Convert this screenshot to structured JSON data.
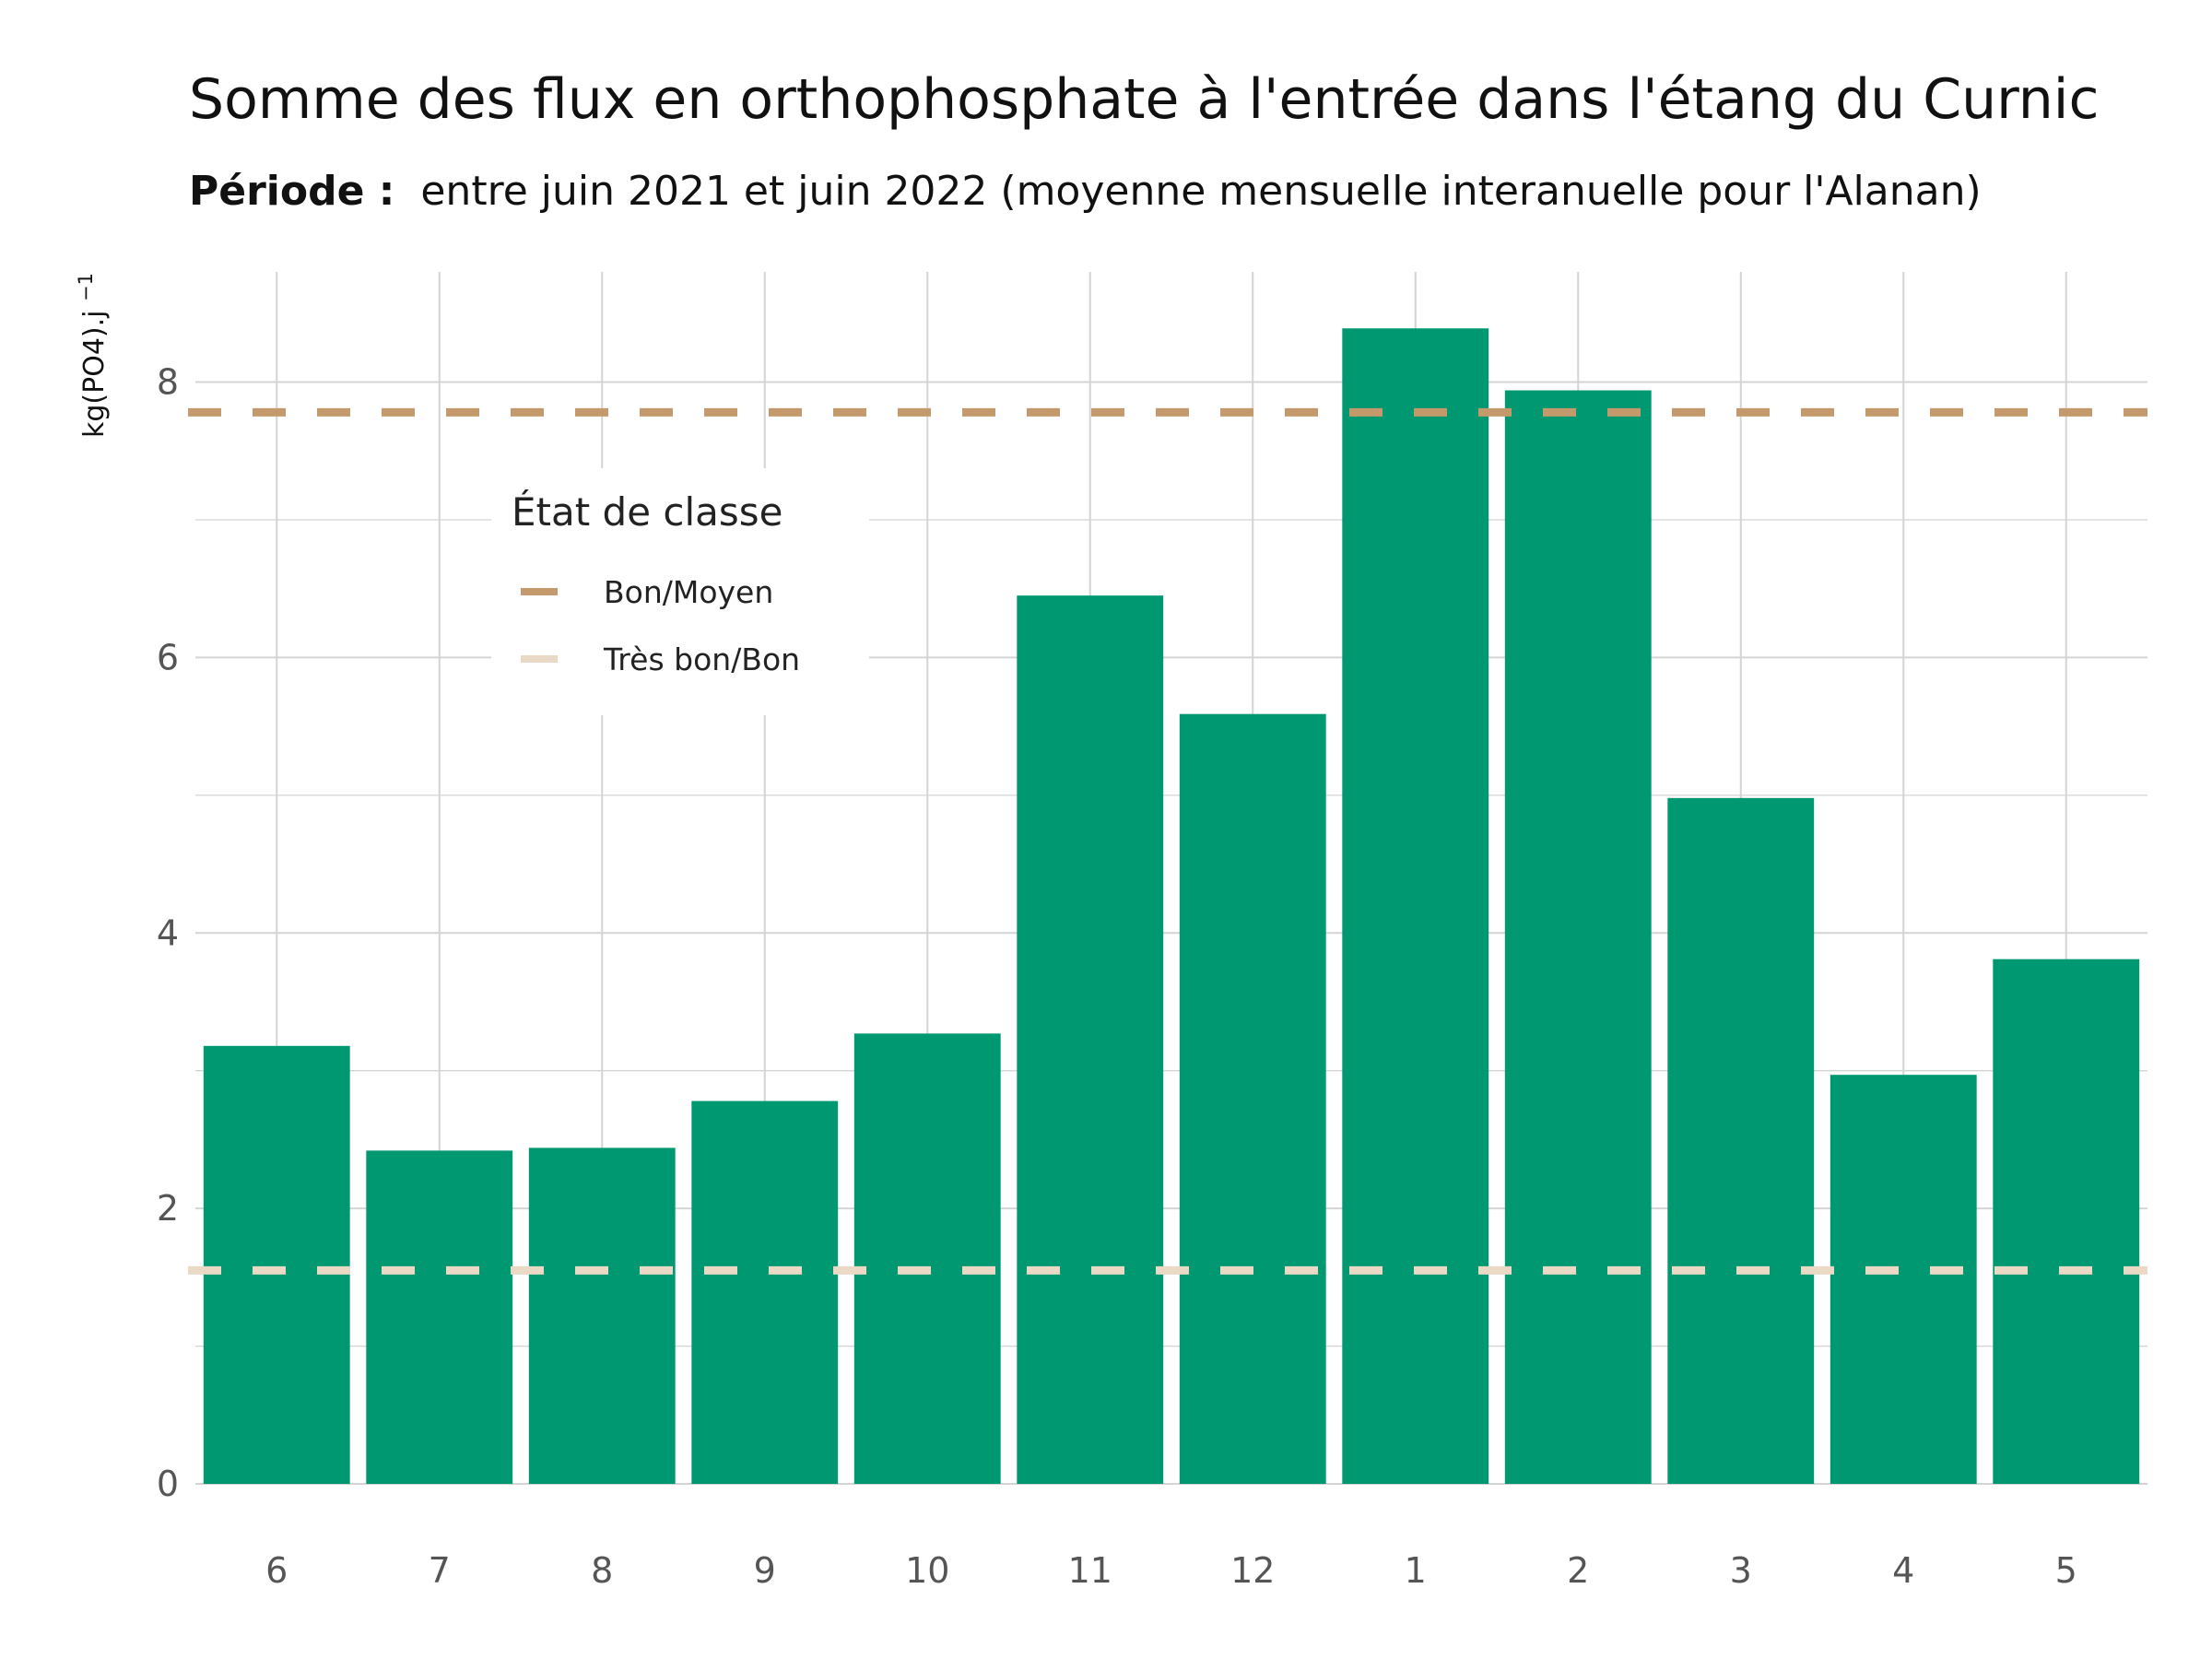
{
  "chart_data": {
    "type": "bar",
    "title": "Somme des flux en orthophosphate à l'entrée dans l'étang du Curnic",
    "subtitle_bold": "Période :",
    "subtitle": "entre juin 2021 et juin 2022 (moyenne mensuelle interanuelle pour l'Alanan)",
    "ylabel": "kg(PO4).j",
    "ylabel_superscript": "−1",
    "xlabel": "",
    "categories": [
      "6",
      "7",
      "8",
      "9",
      "10",
      "11",
      "12",
      "1",
      "2",
      "3",
      "4",
      "5"
    ],
    "values": [
      3.18,
      2.42,
      2.44,
      2.78,
      3.27,
      6.45,
      5.59,
      8.39,
      7.94,
      4.98,
      2.97,
      3.81
    ],
    "ylim": [
      0,
      8.8
    ],
    "yticks": [
      0,
      2,
      4,
      6,
      8
    ],
    "bar_color": "#009870",
    "grid": true,
    "thresholds": [
      {
        "name": "Bon/Moyen",
        "value": 7.78,
        "color": "#C49A6C"
      },
      {
        "name": "Très bon/Bon",
        "value": 1.55,
        "color": "#EAD9C5"
      }
    ],
    "legend": {
      "title": "État de classe",
      "placement": "upper-left inside plot"
    }
  }
}
